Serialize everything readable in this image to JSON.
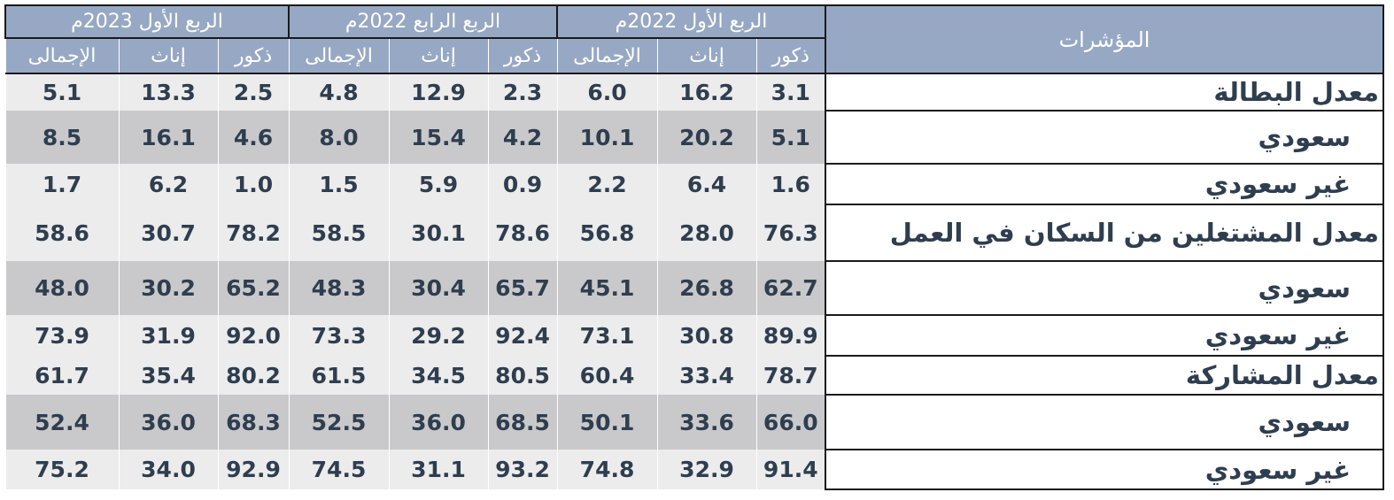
{
  "header": {
    "indicator_label": "المؤشرات",
    "groups": [
      "الربع الأول 2022م",
      "الربع الرابع 2022م",
      "الربع الأول 2023م"
    ],
    "subheaders": [
      "ذكور",
      "إناث",
      "الإجمالى"
    ]
  },
  "table": {
    "rows": [
      {
        "label": "معدل البطالة",
        "level": "main",
        "values": [
          "3.1",
          "16.2",
          "6.0",
          "2.3",
          "12.9",
          "4.8",
          "2.5",
          "13.3",
          "5.1"
        ]
      },
      {
        "label": "سعودي",
        "level": "sub",
        "values": [
          "5.1",
          "20.2",
          "10.1",
          "4.2",
          "15.4",
          "8.0",
          "4.6",
          "16.1",
          "8.5"
        ]
      },
      {
        "label": "غير سعودي",
        "level": "sub",
        "values": [
          "1.6",
          "6.4",
          "2.2",
          "0.9",
          "5.9",
          "1.5",
          "1.0",
          "6.2",
          "1.7"
        ]
      },
      {
        "label": "معدل المشتغلين من السكان في العمل",
        "level": "main",
        "values": [
          "76.3",
          "28.0",
          "56.8",
          "78.6",
          "30.1",
          "58.5",
          "78.2",
          "30.7",
          "58.6"
        ]
      },
      {
        "label": "سعودي",
        "level": "sub",
        "values": [
          "62.7",
          "26.8",
          "45.1",
          "65.7",
          "30.4",
          "48.3",
          "65.2",
          "30.2",
          "48.0"
        ]
      },
      {
        "label": "غير سعودي",
        "level": "sub",
        "values": [
          "89.9",
          "30.8",
          "73.1",
          "92.4",
          "29.2",
          "73.3",
          "92.0",
          "31.9",
          "73.9"
        ]
      },
      {
        "label": "معدل المشاركة",
        "level": "main",
        "values": [
          "78.7",
          "33.4",
          "60.4",
          "80.5",
          "34.5",
          "61.5",
          "80.2",
          "35.4",
          "61.7"
        ]
      },
      {
        "label": "سعودي",
        "level": "sub",
        "values": [
          "66.0",
          "33.6",
          "50.1",
          "68.5",
          "36.0",
          "52.5",
          "68.3",
          "36.0",
          "52.4"
        ]
      },
      {
        "label": "غير سعودي",
        "level": "sub",
        "values": [
          "91.4",
          "32.9",
          "74.8",
          "93.2",
          "31.1",
          "74.5",
          "92.9",
          "34.0",
          "75.2"
        ]
      }
    ]
  }
}
